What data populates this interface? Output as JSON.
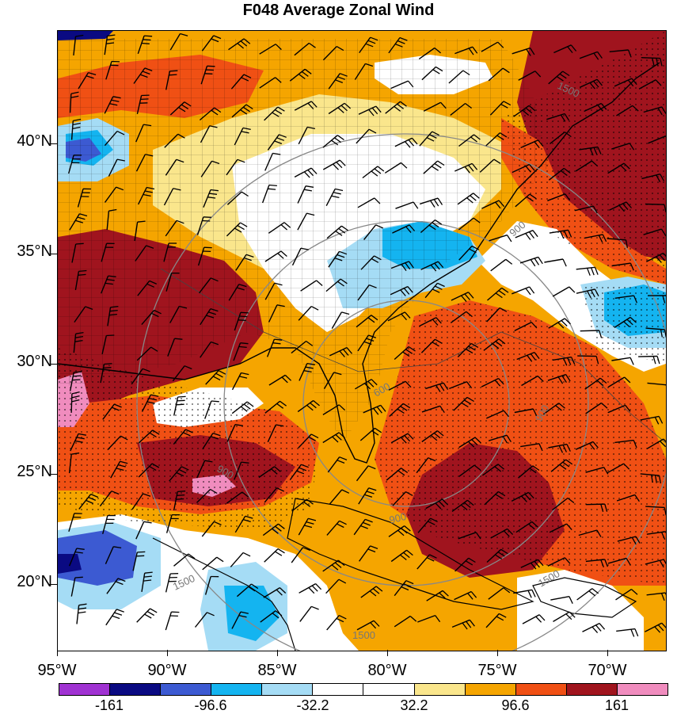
{
  "title": "F048 Average Zonal Wind",
  "lat_labels": [
    "40°N",
    "35°N",
    "30°N",
    "25°N",
    "20°N"
  ],
  "lon_labels": [
    "95°W",
    "90°W",
    "85°W",
    "80°W",
    "75°W",
    "70°W"
  ],
  "contour_labels": [
    "1500",
    "900",
    "900",
    "600",
    "900",
    "900",
    "1500",
    "1500",
    "1500"
  ],
  "colorbar": {
    "colors": [
      "#a032d2",
      "#0a0a82",
      "#3c5ad2",
      "#14b4f0",
      "#a5dcf5",
      "#ffffff",
      "#ffffff",
      "#fae68c",
      "#f5a500",
      "#f05014",
      "#a0141e",
      "#f08cbe"
    ],
    "labels": [
      "-161",
      "-96.6",
      "-32.2",
      "32.2",
      "96.6",
      "161"
    ]
  },
  "colors": {
    "dark_red": "#a0141e",
    "red_orange": "#f05014",
    "orange": "#f5a500",
    "yellow": "#fae68c",
    "white": "#ffffff",
    "light_blue": "#a5dcf5",
    "cyan": "#14b4f0",
    "blue": "#3c5ad2",
    "navy": "#0a0a82",
    "pink": "#f08cbe"
  }
}
